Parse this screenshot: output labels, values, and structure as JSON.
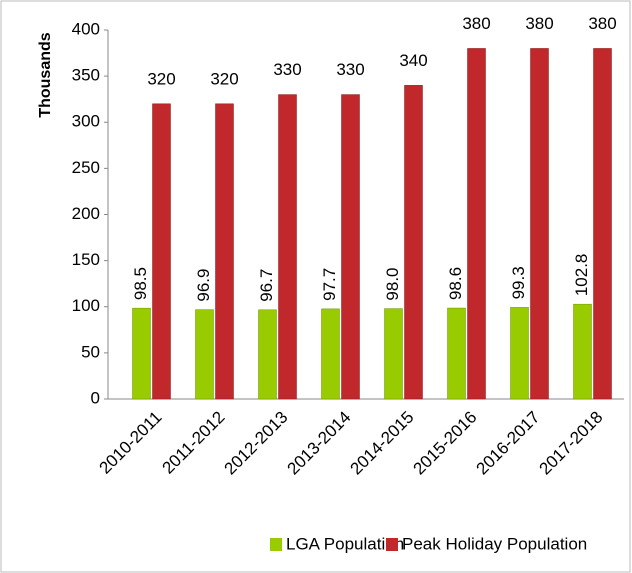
{
  "chart_data": {
    "type": "bar",
    "categories": [
      "2010-2011",
      "2011-2012",
      "2012-2013",
      "2013-2014",
      "2014-2015",
      "2015-2016",
      "2016-2017",
      "2017-2018"
    ],
    "series": [
      {
        "name": "LGA Population",
        "color": "#99cc00",
        "values": [
          98.5,
          96.9,
          96.7,
          97.7,
          98.0,
          98.6,
          99.3,
          102.8
        ],
        "value_labels": [
          "98.5",
          "96.9",
          "96.7",
          "97.7",
          "98.0",
          "98.6",
          "99.3",
          "102.8"
        ]
      },
      {
        "name": "Peak Holiday Population",
        "color": "#c0282b",
        "values": [
          320,
          320,
          330,
          330,
          340,
          380,
          380,
          380
        ]
      }
    ],
    "ylabel": "Thousands",
    "ylim": [
      0,
      400
    ],
    "yticks": [
      0,
      50,
      100,
      150,
      200,
      250,
      300,
      350,
      400
    ],
    "legend": "bottom"
  }
}
